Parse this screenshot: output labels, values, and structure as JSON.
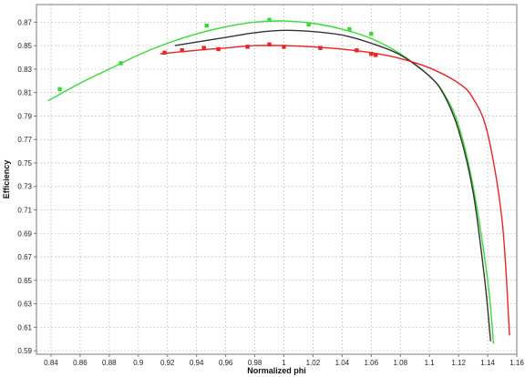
{
  "chart_data": {
    "type": "line",
    "title": "",
    "xlabel": "Normalized phi",
    "ylabel": "Efficiency",
    "xlim": [
      0.83,
      1.16
    ],
    "ylim": [
      0.587,
      0.885
    ],
    "grid": true,
    "x_ticks": [
      "0.84",
      "0.86",
      "0.88",
      "0.9",
      "0.92",
      "0.94",
      "0.96",
      "0.98",
      "1",
      "1.02",
      "1.04",
      "1.06",
      "1.08",
      "1.1",
      "1.12",
      "1.14",
      "1.16"
    ],
    "y_ticks": [
      "0.59",
      "0.61",
      "0.63",
      "0.65",
      "0.67",
      "0.69",
      "0.71",
      "0.73",
      "0.75",
      "0.77",
      "0.79",
      "0.81",
      "0.83",
      "0.85",
      "0.87"
    ],
    "series": [
      {
        "color": "#33dd33",
        "curve": [
          {
            "x": 0.838,
            "y": 0.803
          },
          {
            "x": 0.86,
            "y": 0.818
          },
          {
            "x": 0.88,
            "y": 0.83
          },
          {
            "x": 0.9,
            "y": 0.842
          },
          {
            "x": 0.92,
            "y": 0.852
          },
          {
            "x": 0.94,
            "y": 0.86
          },
          {
            "x": 0.96,
            "y": 0.866
          },
          {
            "x": 0.98,
            "y": 0.87
          },
          {
            "x": 1.0,
            "y": 0.871
          },
          {
            "x": 1.02,
            "y": 0.869
          },
          {
            "x": 1.04,
            "y": 0.864
          },
          {
            "x": 1.06,
            "y": 0.856
          },
          {
            "x": 1.08,
            "y": 0.843
          },
          {
            "x": 1.1,
            "y": 0.824
          },
          {
            "x": 1.11,
            "y": 0.809
          },
          {
            "x": 1.12,
            "y": 0.782
          },
          {
            "x": 1.13,
            "y": 0.73
          },
          {
            "x": 1.14,
            "y": 0.65
          },
          {
            "x": 1.144,
            "y": 0.596
          }
        ],
        "points": [
          {
            "x": 0.846,
            "y": 0.813
          },
          {
            "x": 0.888,
            "y": 0.835
          },
          {
            "x": 0.947,
            "y": 0.867
          },
          {
            "x": 0.99,
            "y": 0.872
          },
          {
            "x": 1.017,
            "y": 0.868
          },
          {
            "x": 1.045,
            "y": 0.864
          },
          {
            "x": 1.06,
            "y": 0.86
          }
        ]
      },
      {
        "color": "#333333",
        "curve": [
          {
            "x": 0.925,
            "y": 0.85
          },
          {
            "x": 0.94,
            "y": 0.853
          },
          {
            "x": 0.96,
            "y": 0.857
          },
          {
            "x": 0.98,
            "y": 0.861
          },
          {
            "x": 1.0,
            "y": 0.863
          },
          {
            "x": 1.02,
            "y": 0.862
          },
          {
            "x": 1.04,
            "y": 0.859
          },
          {
            "x": 1.06,
            "y": 0.852
          },
          {
            "x": 1.08,
            "y": 0.842
          },
          {
            "x": 1.1,
            "y": 0.824
          },
          {
            "x": 1.11,
            "y": 0.808
          },
          {
            "x": 1.12,
            "y": 0.778
          },
          {
            "x": 1.13,
            "y": 0.725
          },
          {
            "x": 1.138,
            "y": 0.65
          },
          {
            "x": 1.142,
            "y": 0.598
          }
        ],
        "points": []
      },
      {
        "color": "#ee2222",
        "curve": [
          {
            "x": 0.915,
            "y": 0.843
          },
          {
            "x": 0.94,
            "y": 0.846
          },
          {
            "x": 0.96,
            "y": 0.848
          },
          {
            "x": 0.98,
            "y": 0.85
          },
          {
            "x": 1.0,
            "y": 0.85
          },
          {
            "x": 1.02,
            "y": 0.849
          },
          {
            "x": 1.04,
            "y": 0.847
          },
          {
            "x": 1.06,
            "y": 0.844
          },
          {
            "x": 1.08,
            "y": 0.839
          },
          {
            "x": 1.1,
            "y": 0.831
          },
          {
            "x": 1.12,
            "y": 0.818
          },
          {
            "x": 1.13,
            "y": 0.805
          },
          {
            "x": 1.14,
            "y": 0.775
          },
          {
            "x": 1.15,
            "y": 0.7
          },
          {
            "x": 1.155,
            "y": 0.603
          }
        ],
        "points": [
          {
            "x": 0.918,
            "y": 0.844
          },
          {
            "x": 0.93,
            "y": 0.846
          },
          {
            "x": 0.945,
            "y": 0.848
          },
          {
            "x": 0.955,
            "y": 0.847
          },
          {
            "x": 0.975,
            "y": 0.849
          },
          {
            "x": 0.99,
            "y": 0.851
          },
          {
            "x": 1.0,
            "y": 0.849
          },
          {
            "x": 1.025,
            "y": 0.848
          },
          {
            "x": 1.05,
            "y": 0.846
          },
          {
            "x": 1.06,
            "y": 0.843
          },
          {
            "x": 1.063,
            "y": 0.842
          }
        ]
      }
    ]
  }
}
